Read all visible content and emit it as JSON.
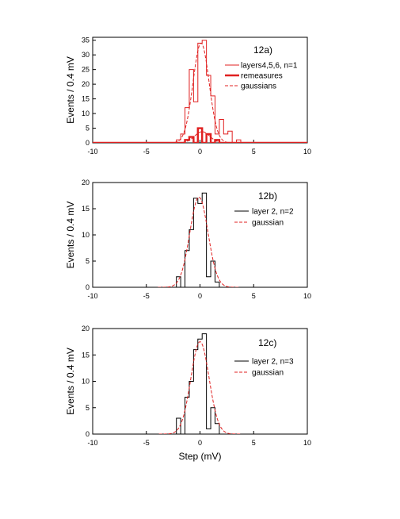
{
  "chart_data": [
    {
      "type": "histogram",
      "panel_label": "12a)",
      "xlabel": "",
      "ylabel": "Events / 0.4 mV",
      "xlim": [
        -10,
        10
      ],
      "ylim": [
        0,
        36
      ],
      "xticks": [
        "-10",
        "-5",
        "0",
        "5",
        "10"
      ],
      "yticks": [
        "0",
        "5",
        "10",
        "15",
        "20",
        "25",
        "30",
        "35"
      ],
      "legend_position": "top-right",
      "series": [
        {
          "name": "layers4,5,6, n=1",
          "style": "step",
          "color": "#e02020",
          "width": 1,
          "x": [
            -2.6,
            -2.2,
            -1.8,
            -1.4,
            -1.0,
            -0.6,
            -0.2,
            0.2,
            0.6,
            1.0,
            1.4,
            1.8,
            2.2,
            2.6,
            3.0,
            3.4,
            3.8
          ],
          "values": [
            0,
            1,
            3,
            12,
            25,
            14,
            34,
            35,
            23,
            16,
            3,
            8,
            3,
            4,
            0,
            1,
            0
          ]
        },
        {
          "name": "remeasures",
          "style": "step-bold",
          "color": "#e02020",
          "width": 2.4,
          "x": [
            -1.8,
            -1.4,
            -1.0,
            -0.6,
            -0.2,
            0.2,
            0.6,
            1.0,
            1.4,
            1.8
          ],
          "values": [
            0,
            1,
            2,
            0,
            5,
            0,
            3,
            0,
            1,
            0
          ]
        },
        {
          "name": "gaussians",
          "style": "dashed",
          "color": "#e02020",
          "width": 1,
          "curves": [
            {
              "amplitude": 34,
              "mean": 0.1,
              "sigma": 0.75
            },
            {
              "amplitude": 3.8,
              "mean": 0.2,
              "sigma": 0.7
            }
          ]
        }
      ]
    },
    {
      "type": "histogram",
      "panel_label": "12b)",
      "xlabel": "",
      "ylabel": "Events / 0.4 mV",
      "xlim": [
        -10,
        10
      ],
      "ylim": [
        0,
        20
      ],
      "xticks": [
        "-10",
        "-5",
        "0",
        "5",
        "10"
      ],
      "yticks": [
        "0",
        "5",
        "10",
        "15",
        "20"
      ],
      "legend_position": "top-right",
      "series": [
        {
          "name": "layer 2, n=2",
          "style": "step",
          "color": "#000000",
          "width": 1,
          "x": [
            -2.2,
            -1.8,
            -1.4,
            -1.0,
            -0.6,
            -0.2,
            0.2,
            0.6,
            1.0,
            1.4,
            1.8,
            2.2
          ],
          "values": [
            2,
            0,
            7,
            11,
            17,
            16,
            18,
            2,
            5,
            1,
            0,
            0
          ]
        },
        {
          "name": "gaussian",
          "style": "dashed",
          "color": "#e02020",
          "width": 1,
          "curves": [
            {
              "amplitude": 17.2,
              "mean": -0.1,
              "sigma": 0.85
            }
          ]
        }
      ]
    },
    {
      "type": "histogram",
      "panel_label": "12c)",
      "xlabel": "Step  (mV)",
      "ylabel": "Events / 0.4 mV",
      "xlim": [
        -10,
        10
      ],
      "ylim": [
        0,
        20
      ],
      "xticks": [
        "-10",
        "-5",
        "0",
        "5",
        "10"
      ],
      "yticks": [
        "0",
        "5",
        "10",
        "15",
        "20"
      ],
      "legend_position": "top-right",
      "series": [
        {
          "name": "layer 2, n=3",
          "style": "step",
          "color": "#000000",
          "width": 1,
          "x": [
            -2.2,
            -1.8,
            -1.4,
            -1.0,
            -0.6,
            -0.2,
            0.2,
            0.6,
            1.0,
            1.4,
            1.8,
            2.2
          ],
          "values": [
            3,
            0,
            7,
            10,
            16,
            18,
            19,
            1,
            5,
            2,
            0,
            0
          ]
        },
        {
          "name": "gaussian",
          "style": "dashed",
          "color": "#e02020",
          "width": 1,
          "curves": [
            {
              "amplitude": 17.5,
              "mean": 0.0,
              "sigma": 0.85
            }
          ]
        }
      ]
    }
  ]
}
